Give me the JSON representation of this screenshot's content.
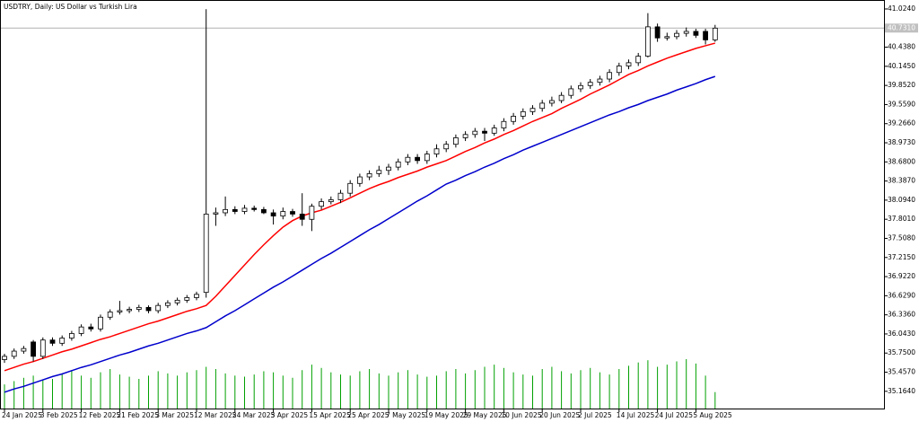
{
  "chart_data": {
    "type": "candlestick",
    "title": "USDTRY, Daily:  US Dollar vs Turkish Lira",
    "open": [
      35.65,
      35.7,
      35.78,
      35.92,
      35.7,
      35.95,
      35.9,
      35.98,
      36.05,
      36.15,
      36.12,
      36.3,
      36.38,
      36.4,
      36.42,
      36.45,
      36.4,
      36.48,
      36.52,
      36.56,
      36.6,
      36.68,
      37.88,
      37.9,
      37.95,
      37.92,
      37.97,
      37.95,
      37.9,
      37.85,
      37.92,
      37.88,
      37.8,
      38.0,
      38.07,
      38.1,
      38.2,
      38.35,
      38.45,
      38.5,
      38.55,
      38.6,
      38.68,
      38.75,
      38.7,
      38.8,
      38.88,
      38.95,
      39.05,
      39.1,
      39.15,
      39.12,
      39.2,
      39.3,
      39.38,
      39.45,
      39.5,
      39.58,
      39.62,
      39.7,
      39.8,
      39.85,
      39.9,
      39.95,
      40.05,
      40.15,
      40.2,
      40.3,
      40.75,
      40.58,
      40.6,
      40.65,
      40.68,
      40.68,
      40.55
    ],
    "high": [
      35.74,
      35.82,
      35.86,
      35.95,
      35.99,
      35.99,
      36.02,
      36.09,
      36.19,
      36.2,
      36.34,
      36.42,
      36.55,
      36.46,
      36.49,
      36.48,
      36.52,
      36.56,
      36.6,
      36.64,
      36.69,
      41.02,
      37.98,
      38.15,
      38.0,
      38.02,
      38.01,
      37.99,
      37.95,
      37.98,
      37.96,
      38.2,
      38.04,
      38.12,
      38.15,
      38.25,
      38.4,
      38.5,
      38.55,
      38.62,
      38.65,
      38.73,
      38.8,
      38.8,
      38.85,
      38.95,
      39.0,
      39.1,
      39.15,
      39.2,
      39.2,
      39.25,
      39.35,
      39.43,
      39.5,
      39.55,
      39.63,
      39.68,
      39.75,
      39.85,
      39.9,
      39.95,
      40.0,
      40.1,
      40.2,
      40.25,
      40.35,
      40.96,
      40.8,
      40.66,
      40.7,
      40.74,
      40.72,
      40.72,
      40.78
    ],
    "low": [
      35.6,
      35.66,
      35.74,
      35.62,
      35.66,
      35.86,
      35.86,
      35.94,
      36.01,
      36.08,
      36.08,
      36.26,
      36.34,
      36.36,
      36.38,
      36.36,
      36.36,
      36.44,
      36.48,
      36.52,
      36.56,
      36.6,
      37.7,
      37.85,
      37.88,
      37.88,
      37.92,
      37.88,
      37.72,
      37.8,
      37.84,
      37.7,
      37.62,
      37.95,
      38.03,
      38.05,
      38.15,
      38.3,
      38.4,
      38.45,
      38.48,
      38.55,
      38.63,
      38.65,
      38.65,
      38.75,
      38.83,
      38.9,
      39.0,
      39.05,
      39.0,
      39.08,
      39.15,
      39.25,
      39.33,
      39.4,
      39.45,
      39.53,
      39.58,
      39.65,
      39.75,
      39.8,
      39.85,
      39.9,
      40.0,
      40.1,
      40.15,
      40.28,
      40.52,
      40.54,
      40.56,
      40.6,
      40.58,
      40.48,
      40.52
    ],
    "close": [
      35.7,
      35.78,
      35.82,
      35.7,
      35.95,
      35.9,
      35.98,
      36.05,
      36.15,
      36.12,
      36.3,
      36.38,
      36.4,
      36.42,
      36.45,
      36.4,
      36.48,
      36.52,
      36.56,
      36.6,
      36.65,
      37.88,
      37.9,
      37.95,
      37.92,
      37.97,
      37.95,
      37.9,
      37.85,
      37.92,
      37.88,
      37.8,
      38.0,
      38.07,
      38.1,
      38.2,
      38.35,
      38.45,
      38.5,
      38.55,
      38.6,
      38.68,
      38.75,
      38.7,
      38.8,
      38.88,
      38.95,
      39.05,
      39.1,
      39.15,
      39.12,
      39.2,
      39.3,
      39.38,
      39.45,
      39.5,
      39.58,
      39.62,
      39.7,
      39.8,
      39.85,
      39.9,
      39.95,
      40.05,
      40.15,
      40.2,
      40.3,
      40.75,
      40.58,
      40.6,
      40.65,
      40.68,
      40.62,
      40.55,
      40.73
    ],
    "lines": [
      {
        "color": "#ff0000",
        "values": [
          35.48,
          35.53,
          35.58,
          35.62,
          35.67,
          35.72,
          35.77,
          35.81,
          35.86,
          35.91,
          35.96,
          36.0,
          36.05,
          36.1,
          36.15,
          36.2,
          36.24,
          36.29,
          36.34,
          36.39,
          36.43,
          36.48,
          36.62,
          36.78,
          36.94,
          37.1,
          37.26,
          37.41,
          37.55,
          37.68,
          37.78,
          37.85,
          37.9,
          37.94,
          38.0,
          38.06,
          38.13,
          38.2,
          38.27,
          38.33,
          38.38,
          38.44,
          38.49,
          38.54,
          38.6,
          38.65,
          38.7,
          38.77,
          38.84,
          38.9,
          38.97,
          39.03,
          39.1,
          39.16,
          39.23,
          39.3,
          39.36,
          39.42,
          39.5,
          39.57,
          39.64,
          39.72,
          39.79,
          39.86,
          39.94,
          40.02,
          40.08,
          40.15,
          40.21,
          40.27,
          40.32,
          40.37,
          40.42,
          40.46,
          40.5
        ]
      },
      {
        "color": "#0000cc",
        "values": [
          35.15,
          35.2,
          35.24,
          35.29,
          35.34,
          35.39,
          35.43,
          35.48,
          35.53,
          35.57,
          35.62,
          35.67,
          35.72,
          35.76,
          35.81,
          35.86,
          35.9,
          35.95,
          36.0,
          36.05,
          36.09,
          36.14,
          36.23,
          36.32,
          36.4,
          36.49,
          36.58,
          36.67,
          36.76,
          36.84,
          36.93,
          37.02,
          37.11,
          37.2,
          37.28,
          37.37,
          37.46,
          37.55,
          37.64,
          37.72,
          37.81,
          37.9,
          37.99,
          38.08,
          38.16,
          38.25,
          38.34,
          38.4,
          38.47,
          38.53,
          38.6,
          38.66,
          38.73,
          38.79,
          38.86,
          38.92,
          38.98,
          39.04,
          39.1,
          39.16,
          39.22,
          39.28,
          39.34,
          39.4,
          39.45,
          39.51,
          39.56,
          39.62,
          39.67,
          39.72,
          39.78,
          39.83,
          39.88,
          39.94,
          39.99
        ]
      }
    ],
    "volume": [
      22,
      25,
      28,
      30,
      26,
      27,
      32,
      35,
      30,
      28,
      33,
      36,
      31,
      29,
      27,
      30,
      34,
      32,
      30,
      33,
      35,
      38,
      36,
      32,
      30,
      29,
      31,
      34,
      33,
      30,
      28,
      35,
      40,
      37,
      33,
      31,
      30,
      34,
      36,
      32,
      30,
      33,
      35,
      31,
      29,
      30,
      34,
      36,
      32,
      35,
      38,
      40,
      37,
      33,
      31,
      30,
      36,
      38,
      34,
      32,
      35,
      37,
      33,
      31,
      36,
      39,
      42,
      44,
      38,
      40,
      43,
      45,
      41,
      30,
      15
    ],
    "volume_color": "#00a000",
    "bid": 40.731,
    "ylim": [
      34.9,
      41.12
    ],
    "yticks": [
      {
        "value": 41.024,
        "label": "41.0240"
      },
      {
        "value": 40.731,
        "label": "40.7310"
      },
      {
        "value": 40.438,
        "label": "40.4380"
      },
      {
        "value": 40.145,
        "label": "40.1450"
      },
      {
        "value": 39.852,
        "label": "39.8520"
      },
      {
        "value": 39.559,
        "label": "39.5590"
      },
      {
        "value": 39.266,
        "label": "39.2660"
      },
      {
        "value": 38.973,
        "label": "38.9730"
      },
      {
        "value": 38.68,
        "label": "38.6800"
      },
      {
        "value": 38.387,
        "label": "38.3870"
      },
      {
        "value": 38.094,
        "label": "38.0940"
      },
      {
        "value": 37.801,
        "label": "37.8010"
      },
      {
        "value": 37.508,
        "label": "37.5080"
      },
      {
        "value": 37.215,
        "label": "37.2150"
      },
      {
        "value": 36.922,
        "label": "36.9220"
      },
      {
        "value": 36.629,
        "label": "36.6290"
      },
      {
        "value": 36.336,
        "label": "36.3360"
      },
      {
        "value": 36.043,
        "label": "36.0430"
      },
      {
        "value": 35.75,
        "label": "35.7500"
      },
      {
        "value": 35.457,
        "label": "35.4570"
      },
      {
        "value": 35.164,
        "label": "35.1640"
      }
    ],
    "xticks": [
      {
        "value": 0,
        "label": "24 Jan 2025"
      },
      {
        "value": 4,
        "label": "3 Feb 2025"
      },
      {
        "value": 8,
        "label": "12 Feb 2025"
      },
      {
        "value": 12,
        "label": "21 Feb 2025"
      },
      {
        "value": 16,
        "label": "3 Mar 2025"
      },
      {
        "value": 20,
        "label": "12 Mar 2025"
      },
      {
        "value": 24,
        "label": "24 Mar 2025"
      },
      {
        "value": 28,
        "label": "3 Apr 2025"
      },
      {
        "value": 32,
        "label": "15 Apr 2025"
      },
      {
        "value": 36,
        "label": "25 Apr 2025"
      },
      {
        "value": 40,
        "label": "7 May 2025"
      },
      {
        "value": 44,
        "label": "19 May 2025"
      },
      {
        "value": 48,
        "label": "29 May 2025"
      },
      {
        "value": 52,
        "label": "10 Jun 2025"
      },
      {
        "value": 56,
        "label": "20 Jun 2025"
      },
      {
        "value": 60,
        "label": "2 Jul 2025"
      },
      {
        "value": 64,
        "label": "14 Jul 2025"
      },
      {
        "value": 68,
        "label": "24 Jul 2025"
      },
      {
        "value": 72,
        "label": "5 Aug 2025"
      }
    ]
  }
}
